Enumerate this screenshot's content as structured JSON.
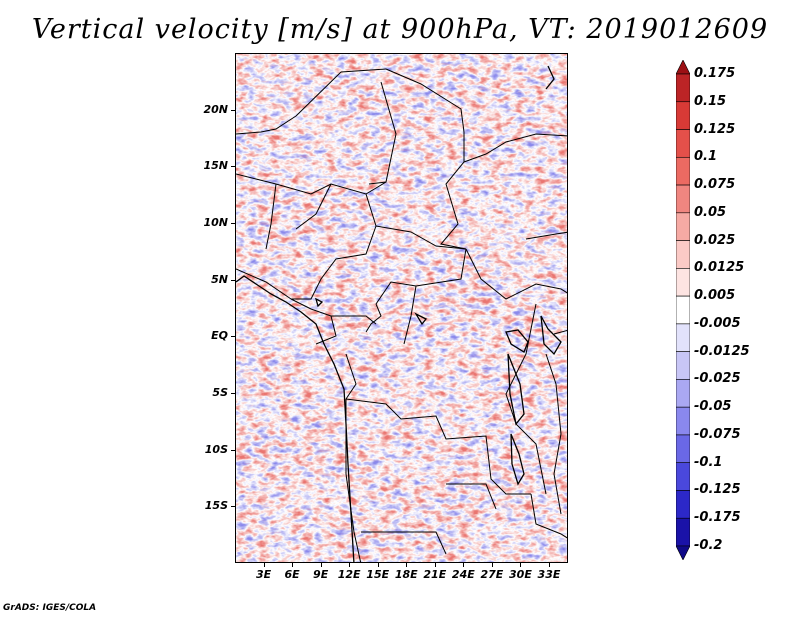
{
  "title": "Vertical velocity [m/s] at 900hPa, VT: 2019012609",
  "credit": "GrADS: IGES/COLA",
  "map": {
    "lat_labels": [
      "20N",
      "15N",
      "10N",
      "5N",
      "EQ",
      "5S",
      "10S",
      "15S"
    ],
    "lon_labels": [
      "3E",
      "6E",
      "9E",
      "12E",
      "15E",
      "18E",
      "21E",
      "24E",
      "27E",
      "30E",
      "33E"
    ],
    "lon_range": [
      0,
      35
    ],
    "lat_range": [
      -20,
      25
    ],
    "field_colors": {
      "positive": "#e4504a",
      "negative": "#6a68e6",
      "neutral": "#ffffff"
    }
  },
  "colorbar": {
    "levels": [
      "0.175",
      "0.15",
      "0.125",
      "0.1",
      "0.075",
      "0.05",
      "0.025",
      "0.0125",
      "0.005",
      "-0.005",
      "-0.0125",
      "-0.025",
      "-0.05",
      "-0.075",
      "-0.1",
      "-0.125",
      "-0.175",
      "-0.2"
    ],
    "colors": [
      "#9c1014",
      "#bc2426",
      "#d83a36",
      "#e4504a",
      "#ec6a62",
      "#f08680",
      "#f6aaa4",
      "#fbcac6",
      "#fde4e2",
      "#ffffff",
      "#e2e2fb",
      "#c8c6f6",
      "#aaa8f2",
      "#8a88ee",
      "#6a68e6",
      "#4a48dc",
      "#2c28c8",
      "#1a12a8",
      "#100a88"
    ]
  }
}
